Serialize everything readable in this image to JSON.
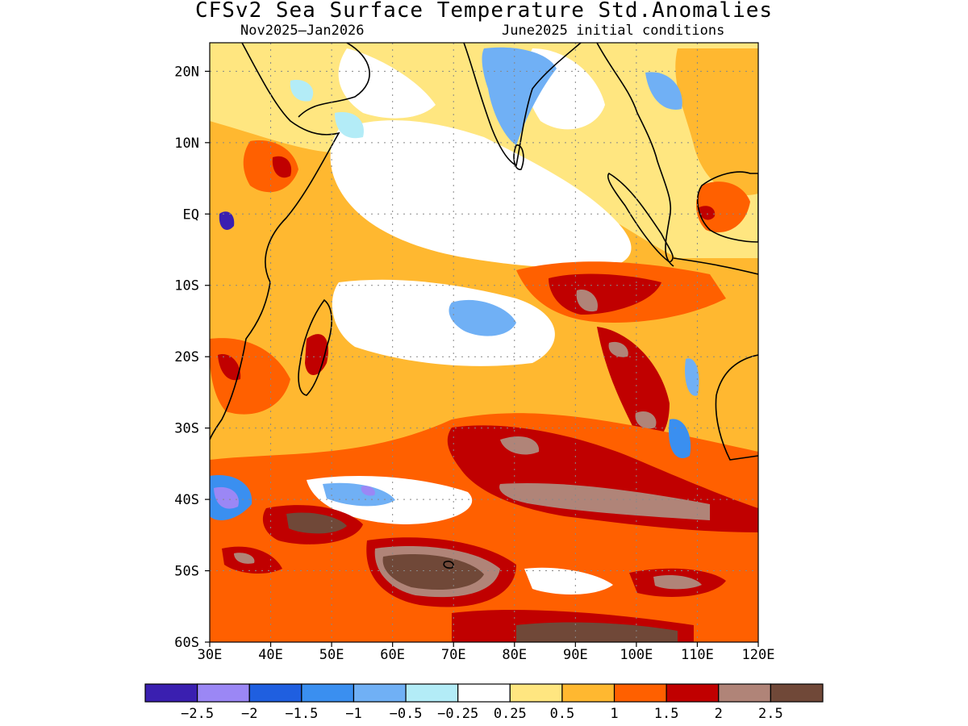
{
  "title": "CFSv2 Sea Surface Temperature Std.Anomalies",
  "subtitle_left": "Nov2025–Jan2026",
  "subtitle_right": "June2025 initial conditions",
  "map": {
    "lon_range": [
      30,
      120
    ],
    "lat_range": [
      -60,
      24
    ],
    "lon_ticks": [
      "30E",
      "40E",
      "50E",
      "60E",
      "70E",
      "80E",
      "90E",
      "100E",
      "110E",
      "120E"
    ],
    "lat_ticks": [
      "20N",
      "10N",
      "EQ",
      "10S",
      "20S",
      "30S",
      "40S",
      "50S",
      "60S"
    ],
    "grid": "dotted"
  },
  "colorbar": {
    "colors": [
      "#3a1fb0",
      "#9b87f5",
      "#1f5fe0",
      "#3a8ff0",
      "#70b0f5",
      "#b3ecf7",
      "#ffffff",
      "#ffe680",
      "#ffb830",
      "#ff6000",
      "#c00000",
      "#b08478",
      "#704838"
    ],
    "labels": [
      "−2.5",
      "−2",
      "−1.5",
      "−1",
      "−0.5",
      "−0.25",
      "0.25",
      "0.5",
      "1",
      "1.5",
      "2",
      "2.5"
    ]
  }
}
